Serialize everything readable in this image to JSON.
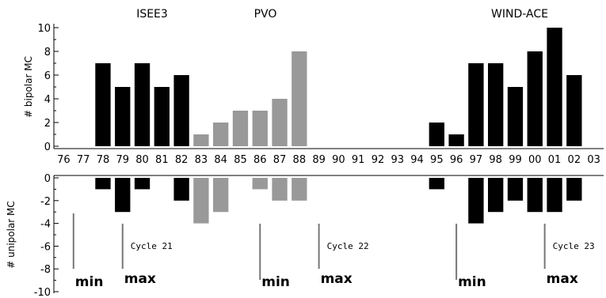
{
  "chart_data": {
    "type": "bar",
    "categories": [
      "76",
      "77",
      "78",
      "79",
      "80",
      "81",
      "82",
      "83",
      "84",
      "85",
      "86",
      "87",
      "88",
      "89",
      "90",
      "91",
      "92",
      "93",
      "94",
      "95",
      "96",
      "97",
      "98",
      "99",
      "00",
      "01",
      "02",
      "03"
    ],
    "missions": [
      {
        "label": "ISEE3",
        "color": "#000000"
      },
      {
        "label": "PVO",
        "color": "#999999"
      },
      {
        "label": "WIND-ACE",
        "color": "#000000"
      }
    ],
    "bar_colors": {
      "dark": "#000000",
      "gray": "#999999"
    },
    "bar_color_by_category": [
      "dark",
      "dark",
      "dark",
      "dark",
      "dark",
      "dark",
      "dark",
      "gray",
      "gray",
      "gray",
      "gray",
      "gray",
      "gray",
      "dark",
      "dark",
      "dark",
      "dark",
      "dark",
      "dark",
      "dark",
      "dark",
      "dark",
      "dark",
      "dark",
      "dark",
      "dark",
      "dark",
      "dark"
    ],
    "panels": [
      {
        "name": "bipolar",
        "ylabel": "# bipolar MC",
        "ylim": [
          0,
          10
        ],
        "yticks": [
          "0",
          "2",
          "4",
          "6",
          "8",
          "10"
        ],
        "values": [
          0,
          0,
          7,
          5,
          7,
          5,
          6,
          1,
          2,
          3,
          3,
          4,
          8,
          0,
          0,
          0,
          0,
          0,
          0,
          2,
          1,
          7,
          7,
          5,
          8,
          10,
          6,
          0
        ]
      },
      {
        "name": "unipolar",
        "ylabel": "# unipolar MC",
        "ylim": [
          -10,
          0
        ],
        "yticks": [
          "0",
          "-2",
          "-4",
          "-6",
          "-8",
          "-10"
        ],
        "values": [
          0,
          0,
          -1,
          -3,
          -1,
          0,
          -2,
          -4,
          -3,
          0,
          -1,
          -2,
          -2,
          0,
          0,
          0,
          0,
          0,
          0,
          -1,
          0,
          -4,
          -3,
          -2,
          -3,
          -3,
          -2,
          0
        ]
      }
    ],
    "cycle_markers": [
      {
        "year": "76.5",
        "label": "min",
        "kind": "min"
      },
      {
        "year": "79",
        "label": "max",
        "kind": "max"
      },
      {
        "year": "86",
        "label": "min",
        "kind": "min"
      },
      {
        "year": "89",
        "label": "max",
        "kind": "max"
      },
      {
        "year": "96",
        "label": "min",
        "kind": "min"
      },
      {
        "year": "00.5",
        "label": "max",
        "kind": "max"
      }
    ],
    "cycle_labels": [
      {
        "after_year": "79",
        "label": "Cycle 21"
      },
      {
        "after_year": "89",
        "label": "Cycle 22"
      },
      {
        "after_year": "00.5",
        "label": "Cycle 23"
      }
    ]
  }
}
